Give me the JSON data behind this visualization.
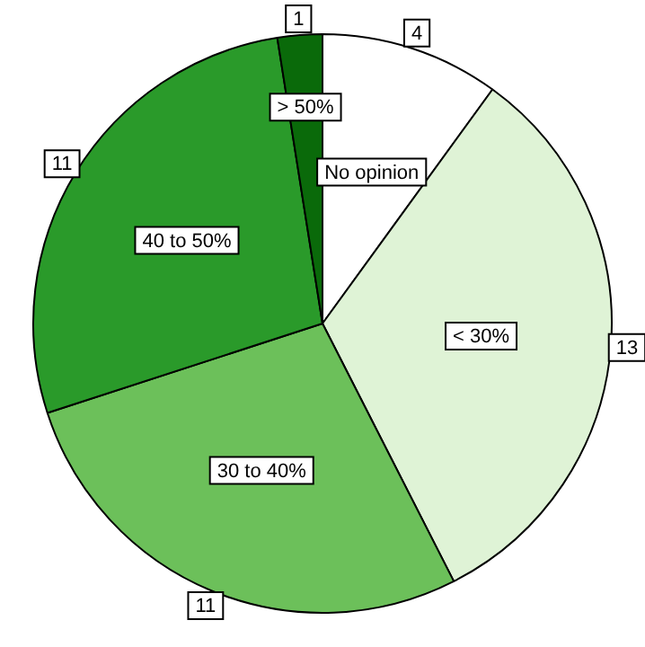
{
  "chart_data": {
    "type": "pie",
    "categories": [
      "No opinion",
      "< 30%",
      "30 to 40%",
      "40 to 50%",
      "> 50%"
    ],
    "values": [
      4,
      13,
      11,
      11,
      1
    ],
    "colors": [
      "#ffffff",
      "#dff3d6",
      "#6cc05a",
      "#2a9a2a",
      "#0a6a0a"
    ],
    "data_labels": true,
    "legend": false
  }
}
